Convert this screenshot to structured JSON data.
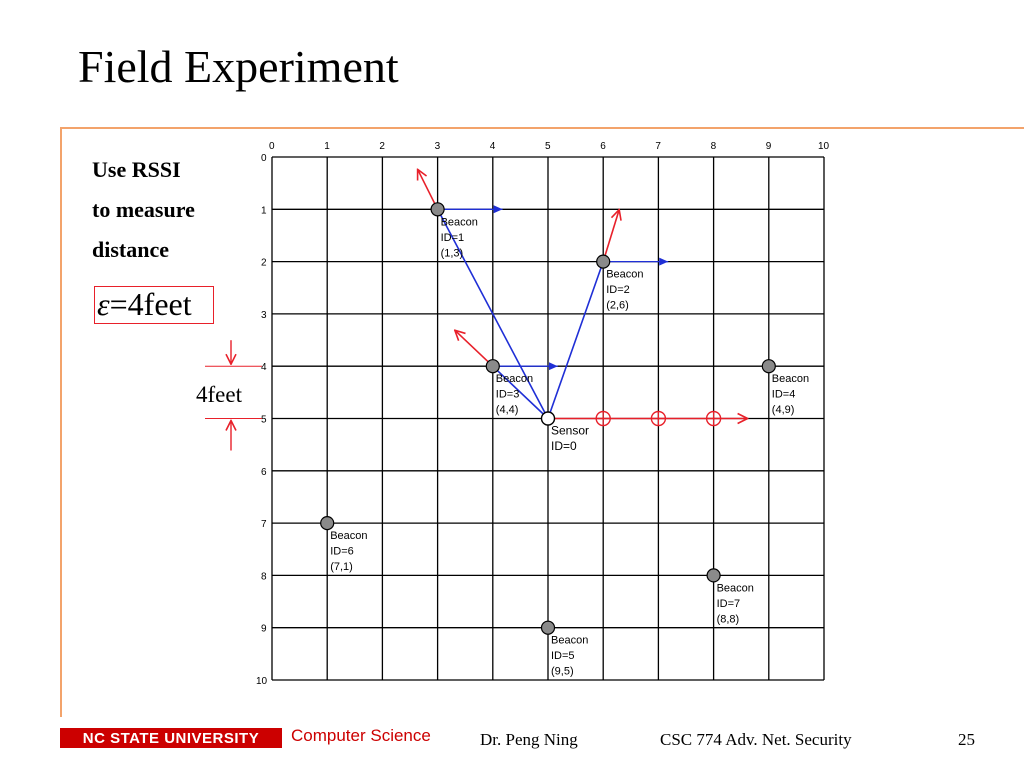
{
  "slide": {
    "title": "Field Experiment",
    "side_text": [
      "Use RSSI",
      "to measure",
      "distance"
    ],
    "equation": {
      "lhs": "ε",
      "op": "=",
      "rhs": "4feet"
    },
    "spacing_label": "4feet",
    "accent_color": "#e8202a",
    "arrow_blue": "#1f2fd6",
    "rule_color": "#f3a36b"
  },
  "grid": {
    "x_ticks": [
      "0",
      "1",
      "2",
      "3",
      "4",
      "5",
      "6",
      "7",
      "8",
      "9",
      "10"
    ],
    "y_ticks": [
      "0",
      "1",
      "2",
      "3",
      "4",
      "5",
      "6",
      "7",
      "8",
      "9",
      "10"
    ]
  },
  "nodes": [
    {
      "kind": "Beacon",
      "id_label": "ID=1",
      "coord_label": "(1,3)",
      "row": 1,
      "col": 3
    },
    {
      "kind": "Beacon",
      "id_label": "ID=2",
      "coord_label": "(2,6)",
      "row": 2,
      "col": 6
    },
    {
      "kind": "Beacon",
      "id_label": "ID=3",
      "coord_label": "(4,4)",
      "row": 4,
      "col": 4
    },
    {
      "kind": "Beacon",
      "id_label": "ID=4",
      "coord_label": "(4,9)",
      "row": 4,
      "col": 9
    },
    {
      "kind": "Sensor",
      "id_label": "ID=0",
      "coord_label": "",
      "row": 5,
      "col": 5
    },
    {
      "kind": "Beacon",
      "id_label": "ID=5",
      "coord_label": "(9,5)",
      "row": 9,
      "col": 5
    },
    {
      "kind": "Beacon",
      "id_label": "ID=6",
      "coord_label": "(7,1)",
      "row": 7,
      "col": 1
    },
    {
      "kind": "Beacon",
      "id_label": "ID=7",
      "coord_label": "(8,8)",
      "row": 8,
      "col": 8
    }
  ],
  "footer": {
    "university": "NC STATE UNIVERSITY",
    "department": "Computer Science",
    "author": "Dr. Peng Ning",
    "course": "CSC 774 Adv. Net. Security",
    "page": "25"
  }
}
